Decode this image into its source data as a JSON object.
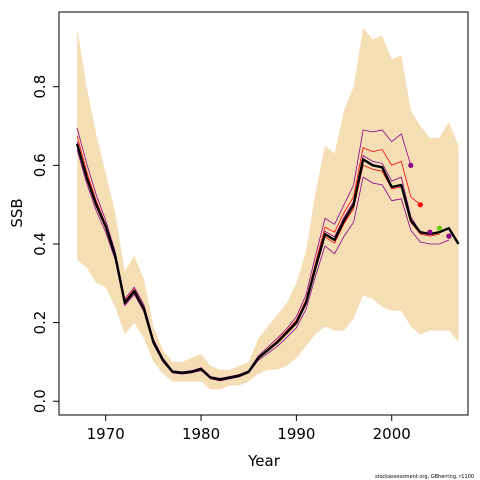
{
  "chart_data": {
    "type": "line",
    "xlabel": "Year",
    "ylabel": "SSB",
    "credit": "stockassessment.org, GBherring, r1100",
    "xlim": [
      1965.1,
      2008.0
    ],
    "ylim": [
      -0.035,
      0.99
    ],
    "xticks": [
      1970,
      1980,
      1990,
      2000
    ],
    "yticks": [
      0.0,
      0.2,
      0.4,
      0.6,
      0.8
    ],
    "ytick_labels": [
      "0.0",
      "0.2",
      "0.4",
      "0.6",
      "0.8"
    ],
    "colors": {
      "band": "#f5deb3",
      "estimate": "#000000",
      "retro_red": "#ff0000",
      "retro_purple": "#8b008b",
      "point_green": "#66cc00"
    },
    "band": {
      "x": [
        1967,
        1968,
        1969,
        1970,
        1971,
        1972,
        1973,
        1974,
        1975,
        1976,
        1977,
        1978,
        1979,
        1980,
        1981,
        1982,
        1983,
        1984,
        1985,
        1986,
        1987,
        1988,
        1989,
        1990,
        1991,
        1992,
        1993,
        1994,
        1995,
        1996,
        1997,
        1998,
        1999,
        2000,
        2001,
        2002,
        2003,
        2004,
        2005,
        2006,
        2007
      ],
      "upper": [
        0.95,
        0.8,
        0.68,
        0.58,
        0.48,
        0.33,
        0.37,
        0.31,
        0.19,
        0.13,
        0.1,
        0.1,
        0.11,
        0.12,
        0.09,
        0.08,
        0.08,
        0.09,
        0.1,
        0.16,
        0.19,
        0.22,
        0.25,
        0.3,
        0.38,
        0.53,
        0.65,
        0.63,
        0.74,
        0.8,
        0.95,
        0.92,
        0.93,
        0.87,
        0.88,
        0.74,
        0.7,
        0.67,
        0.67,
        0.71,
        0.65
      ],
      "lower": [
        0.36,
        0.34,
        0.3,
        0.29,
        0.24,
        0.17,
        0.2,
        0.16,
        0.1,
        0.07,
        0.05,
        0.05,
        0.05,
        0.05,
        0.03,
        0.03,
        0.04,
        0.04,
        0.05,
        0.07,
        0.08,
        0.08,
        0.09,
        0.11,
        0.14,
        0.17,
        0.19,
        0.18,
        0.18,
        0.21,
        0.27,
        0.26,
        0.24,
        0.23,
        0.23,
        0.19,
        0.17,
        0.18,
        0.18,
        0.18,
        0.15
      ]
    },
    "series": [
      {
        "role": "estimate",
        "color": "#000000",
        "width": 2.4,
        "x": [
          1967,
          1968,
          1969,
          1970,
          1971,
          1972,
          1973,
          1974,
          1975,
          1976,
          1977,
          1978,
          1979,
          1980,
          1981,
          1982,
          1983,
          1984,
          1985,
          1986,
          1987,
          1988,
          1989,
          1990,
          1991,
          1992,
          1993,
          1994,
          1995,
          1996,
          1997,
          1998,
          1999,
          2000,
          2001,
          2002,
          2003,
          2004,
          2005,
          2006,
          2007
        ],
        "y": [
          0.655,
          0.57,
          0.5,
          0.445,
          0.37,
          0.25,
          0.28,
          0.235,
          0.15,
          0.105,
          0.075,
          0.072,
          0.075,
          0.082,
          0.06,
          0.055,
          0.06,
          0.065,
          0.075,
          0.11,
          0.13,
          0.15,
          0.175,
          0.2,
          0.25,
          0.34,
          0.425,
          0.41,
          0.46,
          0.5,
          0.615,
          0.6,
          0.595,
          0.545,
          0.55,
          0.46,
          0.43,
          0.425,
          0.43,
          0.44,
          0.4
        ]
      },
      {
        "role": "retro-upper",
        "color": "#8b008b",
        "width": 0.8,
        "x": [
          1967,
          1968,
          1969,
          1970,
          1971,
          1972,
          1973,
          1974,
          1975,
          1976,
          1977,
          1978,
          1979,
          1980,
          1981,
          1982,
          1983,
          1984,
          1985,
          1986,
          1987,
          1988,
          1989,
          1990,
          1991,
          1992,
          1993,
          1994,
          1995,
          1996,
          1997,
          1998,
          1999,
          2000,
          2001,
          2002
        ],
        "y": [
          0.695,
          0.605,
          0.525,
          0.46,
          0.38,
          0.26,
          0.29,
          0.245,
          0.158,
          0.11,
          0.078,
          0.075,
          0.078,
          0.085,
          0.063,
          0.058,
          0.063,
          0.068,
          0.078,
          0.115,
          0.138,
          0.16,
          0.185,
          0.215,
          0.27,
          0.37,
          0.465,
          0.45,
          0.5,
          0.55,
          0.69,
          0.685,
          0.69,
          0.66,
          0.68,
          0.6
        ]
      },
      {
        "role": "retro-red",
        "color": "#ff0000",
        "width": 0.8,
        "x": [
          1967,
          1968,
          1969,
          1970,
          1971,
          1972,
          1973,
          1974,
          1975,
          1976,
          1977,
          1978,
          1979,
          1980,
          1981,
          1982,
          1983,
          1984,
          1985,
          1986,
          1987,
          1988,
          1989,
          1990,
          1991,
          1992,
          1993,
          1994,
          1995,
          1996,
          1997,
          1998,
          1999,
          2000,
          2001,
          2002,
          2003
        ],
        "y": [
          0.675,
          0.585,
          0.51,
          0.45,
          0.375,
          0.255,
          0.285,
          0.24,
          0.154,
          0.107,
          0.076,
          0.073,
          0.076,
          0.083,
          0.061,
          0.056,
          0.061,
          0.066,
          0.076,
          0.112,
          0.133,
          0.154,
          0.18,
          0.206,
          0.258,
          0.352,
          0.443,
          0.43,
          0.48,
          0.52,
          0.645,
          0.635,
          0.64,
          0.6,
          0.61,
          0.52,
          0.5
        ]
      },
      {
        "role": "retro-mid",
        "color": "#8b008b",
        "width": 0.8,
        "x": [
          1967,
          1968,
          1969,
          1970,
          1971,
          1972,
          1973,
          1974,
          1975,
          1976,
          1977,
          1978,
          1979,
          1980,
          1981,
          1982,
          1983,
          1984,
          1985,
          1986,
          1987,
          1988,
          1989,
          1990,
          1991,
          1992,
          1993,
          1994,
          1995,
          1996,
          1997,
          1998,
          1999,
          2000,
          2001,
          2002,
          2003,
          2004
        ],
        "y": [
          0.66,
          0.575,
          0.505,
          0.447,
          0.372,
          0.252,
          0.282,
          0.237,
          0.152,
          0.106,
          0.075,
          0.072,
          0.075,
          0.082,
          0.06,
          0.055,
          0.06,
          0.065,
          0.075,
          0.11,
          0.131,
          0.151,
          0.177,
          0.202,
          0.253,
          0.345,
          0.432,
          0.418,
          0.468,
          0.508,
          0.625,
          0.61,
          0.605,
          0.56,
          0.57,
          0.47,
          0.43,
          0.425
        ]
      },
      {
        "role": "retro-red-2",
        "color": "#ff0000",
        "width": 0.8,
        "x": [
          1967,
          1968,
          1969,
          1970,
          1971,
          1972,
          1973,
          1974,
          1975,
          1976,
          1977,
          1978,
          1979,
          1980,
          1981,
          1982,
          1983,
          1984,
          1985,
          1986,
          1987,
          1988,
          1989,
          1990,
          1991,
          1992,
          1993,
          1994,
          1995,
          1996,
          1997,
          1998,
          1999,
          2000,
          2001,
          2002,
          2003,
          2004,
          2005
        ],
        "y": [
          0.65,
          0.565,
          0.495,
          0.44,
          0.366,
          0.247,
          0.277,
          0.232,
          0.148,
          0.104,
          0.074,
          0.071,
          0.074,
          0.081,
          0.059,
          0.054,
          0.059,
          0.064,
          0.074,
          0.108,
          0.128,
          0.148,
          0.172,
          0.197,
          0.246,
          0.334,
          0.418,
          0.402,
          0.452,
          0.49,
          0.6,
          0.59,
          0.585,
          0.54,
          0.545,
          0.455,
          0.425,
          0.42,
          0.425
        ]
      },
      {
        "role": "retro-lower",
        "color": "#8b008b",
        "width": 0.8,
        "x": [
          1967,
          1968,
          1969,
          1970,
          1971,
          1972,
          1973,
          1974,
          1975,
          1976,
          1977,
          1978,
          1979,
          1980,
          1981,
          1982,
          1983,
          1984,
          1985,
          1986,
          1987,
          1988,
          1989,
          1990,
          1991,
          1992,
          1993,
          1994,
          1995,
          1996,
          1997,
          1998,
          1999,
          2000,
          2001,
          2002,
          2003,
          2004,
          2005,
          2006
        ],
        "y": [
          0.64,
          0.555,
          0.485,
          0.43,
          0.36,
          0.243,
          0.272,
          0.228,
          0.145,
          0.1,
          0.072,
          0.069,
          0.072,
          0.078,
          0.057,
          0.052,
          0.057,
          0.062,
          0.072,
          0.104,
          0.122,
          0.14,
          0.163,
          0.187,
          0.233,
          0.318,
          0.395,
          0.375,
          0.42,
          0.455,
          0.57,
          0.555,
          0.55,
          0.51,
          0.515,
          0.435,
          0.405,
          0.4,
          0.4,
          0.41
        ]
      }
    ],
    "points": [
      {
        "x": 2002,
        "y": 0.6,
        "color": "#8b008b"
      },
      {
        "x": 2003,
        "y": 0.5,
        "color": "#ff0000"
      },
      {
        "x": 2004,
        "y": 0.43,
        "color": "#8b008b"
      },
      {
        "x": 2005,
        "y": 0.44,
        "color": "#66cc00"
      },
      {
        "x": 2006,
        "y": 0.42,
        "color": "#8b008b"
      }
    ]
  }
}
